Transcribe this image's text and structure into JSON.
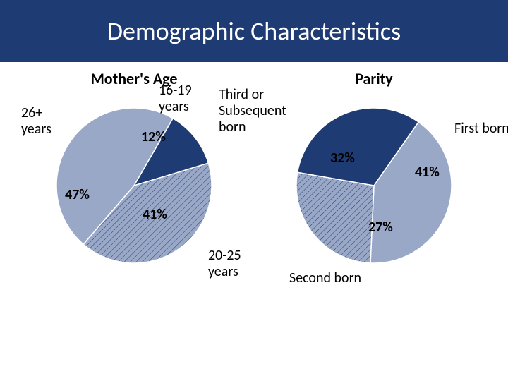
{
  "title": {
    "text": "Demographic Characteristics",
    "banner_bg": "#1f3b73",
    "banner_height": 88,
    "font_size": 36,
    "font_color": "#ffffff"
  },
  "layout": {
    "chart_title_fontsize": 22,
    "label_fontsize_outer": 20,
    "label_fontsize_pct": 20,
    "pie_diameter": 220,
    "hatch_pattern": {
      "stroke": "#1f3b73",
      "stroke_width": 1.0,
      "spacing": 6,
      "angle": 45
    },
    "slice_outline": "#ffffff"
  },
  "charts": [
    {
      "id": "mothers-age",
      "title": "Mother's Age",
      "type": "pie",
      "start_angle_deg": -60,
      "slices": [
        {
          "label": "16-19 years",
          "value_pct": 12,
          "fill": "#1f3b73",
          "hatched": false,
          "pct_text": "12%"
        },
        {
          "label": "20-25 years",
          "value_pct": 41,
          "fill": "#9aa8c8",
          "hatched": true,
          "pct_text": "41%"
        },
        {
          "label": "26+ years",
          "value_pct": 47,
          "fill": "#9aa8c8",
          "hatched": false,
          "pct_text": "47%"
        }
      ]
    },
    {
      "id": "parity",
      "title": "Parity",
      "type": "pie",
      "start_angle_deg": -55,
      "slices": [
        {
          "label": "First born",
          "value_pct": 41,
          "fill": "#9aa8c8",
          "hatched": false,
          "pct_text": "41%"
        },
        {
          "label": "Second born",
          "value_pct": 27,
          "fill": "#9aa8c8",
          "hatched": true,
          "pct_text": "27%"
        },
        {
          "label": "Third or Subsequent born",
          "value_pct": 32,
          "fill": "#1f3b73",
          "hatched": false,
          "pct_text": "32%"
        }
      ]
    }
  ],
  "labels": {
    "age_16_19": "16-19\nyears",
    "age_20_25": "20-25\nyears",
    "age_26p": "26+\nyears",
    "first_born": "First born",
    "second_born": "Second born",
    "third_plus": "Third or\nSubsequent\nborn"
  }
}
